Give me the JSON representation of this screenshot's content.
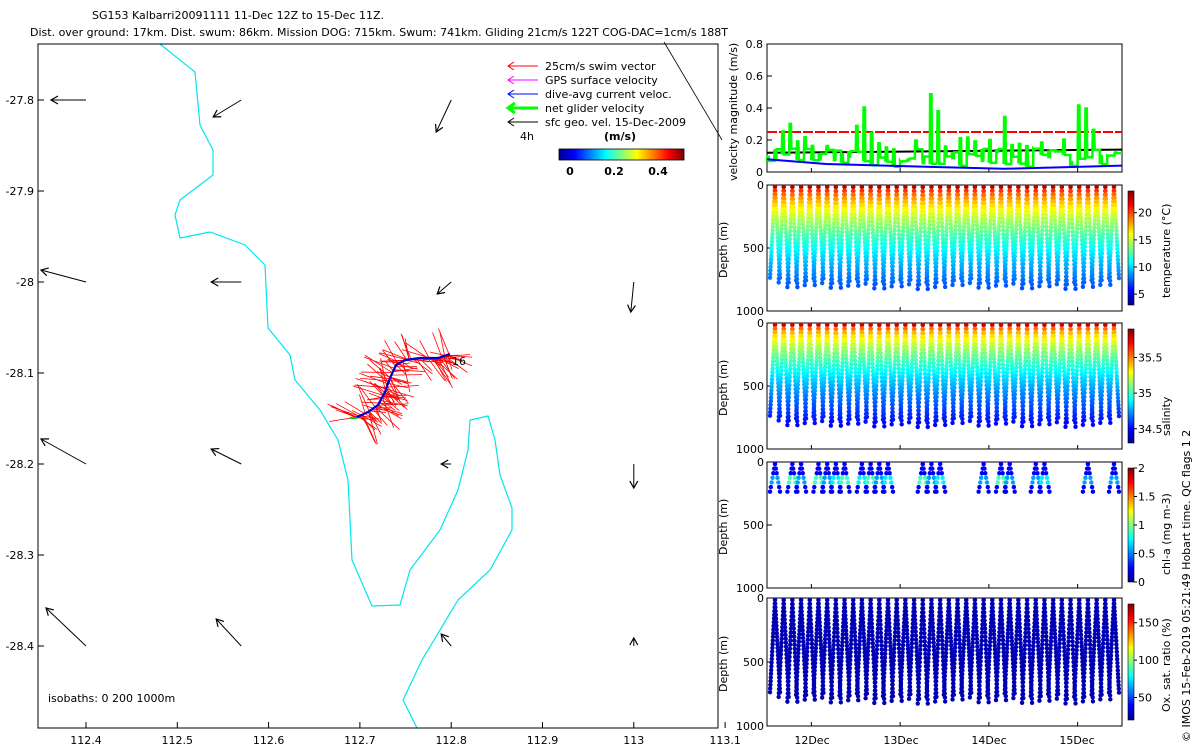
{
  "title_line1": "SG153 Kalbarri20091111 11-Dec 12Z to 15-Dec 11Z.",
  "title_line2": "Dist. over ground: 17km. Dist. swum: 86km. Mission DOG: 715km. Swum: 741km. Gliding 21cm/s 122T COG-DAC=1cm/s 188T",
  "copyright": "© IMOS 15-Feb-2019 05:21:49 Hobart time. QC flags 1  2",
  "legend": {
    "items": [
      {
        "label": "25cm/s swim vector",
        "color": "#ff0000"
      },
      {
        "label": "GPS surface velocity",
        "color": "#ff00ff"
      },
      {
        "label": "dive-avg current veloc.",
        "color": "#0000ff"
      },
      {
        "label": "net glider velocity",
        "color": "#00ff00"
      },
      {
        "label": "sfc geo. vel. 15-Dec-2009",
        "color": "#000000"
      }
    ],
    "time_label": "4h",
    "colorbar_title": "(m/s)",
    "colorbar_ticks": [
      "0",
      "0.2",
      "0.4"
    ]
  },
  "map": {
    "isobaths_label": "isobaths: 0   200  1000m",
    "end_label": "16",
    "x_ticks": [
      "112.4",
      "112.5",
      "112.6",
      "112.7",
      "112.8",
      "112.9",
      "113",
      "113.1"
    ],
    "y_ticks": [
      "-27.8",
      "-27.9",
      "-28",
      "-28.1",
      "-28.2",
      "-28.3",
      "-28.4"
    ],
    "coast_color": "#00e5ee",
    "current_arrows": [
      {
        "lon": 112.4,
        "lat": -27.8,
        "u": -0.35,
        "v": 0.0
      },
      {
        "lon": 112.57,
        "lat": -27.8,
        "u": -0.28,
        "v": -0.17
      },
      {
        "lon": 112.8,
        "lat": -27.8,
        "u": -0.15,
        "v": -0.32
      },
      {
        "lon": 112.4,
        "lat": -28.0,
        "u": -0.45,
        "v": 0.12
      },
      {
        "lon": 112.57,
        "lat": -28.0,
        "u": -0.3,
        "v": 0.0
      },
      {
        "lon": 112.8,
        "lat": -28.0,
        "u": -0.14,
        "v": -0.12
      },
      {
        "lon": 113.0,
        "lat": -28.0,
        "u": -0.03,
        "v": -0.3
      },
      {
        "lon": 112.4,
        "lat": -28.2,
        "u": -0.45,
        "v": 0.25
      },
      {
        "lon": 112.57,
        "lat": -28.2,
        "u": -0.3,
        "v": 0.15
      },
      {
        "lon": 112.8,
        "lat": -28.2,
        "u": -0.1,
        "v": 0.0
      },
      {
        "lon": 113.0,
        "lat": -28.2,
        "u": 0.0,
        "v": -0.24
      },
      {
        "lon": 112.4,
        "lat": -28.4,
        "u": -0.4,
        "v": 0.38
      },
      {
        "lon": 112.57,
        "lat": -28.4,
        "u": -0.25,
        "v": 0.27
      },
      {
        "lon": 112.8,
        "lat": -28.4,
        "u": -0.1,
        "v": 0.12
      },
      {
        "lon": 113.0,
        "lat": -28.4,
        "u": 0.0,
        "v": 0.08
      }
    ]
  },
  "chart_data": [
    {
      "type": "line",
      "ylabel": "velocity magnitude (m/s)",
      "ylim": [
        0,
        0.8
      ],
      "yticks": [
        "0",
        "0.2",
        "0.4",
        "0.6",
        "0.8"
      ],
      "x_range_days": [
        11.5,
        15.5
      ],
      "series": [
        {
          "name": "25cm/s swim vector",
          "color": "#ff0000",
          "values": [
            0.25,
            0.25
          ]
        },
        {
          "name": "sfc geo. vel. 15-Dec-2009",
          "color": "#000000",
          "values": [
            0.12,
            0.14
          ]
        },
        {
          "name": "dive-avg current veloc.",
          "color": "#0000ff",
          "values": [
            0.08,
            0.05,
            0.04,
            0.03,
            0.02,
            0.03,
            0.04
          ]
        },
        {
          "name": "net glider velocity",
          "color": "#00ff00",
          "values": [
            0.21,
            0.13,
            0.53,
            0.5,
            0.3,
            0.27,
            0.22,
            0.25,
            0.2,
            0.18
          ]
        }
      ]
    },
    {
      "type": "heatmap",
      "ylabel": "Depth (m)",
      "colorbar_label": "temperature (°C)",
      "ylim": [
        1000,
        0
      ],
      "yticks": [
        "0",
        "500",
        "1000"
      ],
      "colorbar_ticks": [
        "5",
        "10",
        "15",
        "20"
      ],
      "crange": [
        3,
        24
      ]
    },
    {
      "type": "heatmap",
      "ylabel": "Depth (m)",
      "colorbar_label": "salinity",
      "ylim": [
        1000,
        0
      ],
      "yticks": [
        "0",
        "500",
        "1000"
      ],
      "colorbar_ticks": [
        "34.5",
        "35",
        "35.5"
      ],
      "crange": [
        34.3,
        35.9
      ]
    },
    {
      "type": "heatmap",
      "ylabel": "Depth (m)",
      "colorbar_label": "chl-a (mg m-3)",
      "ylim": [
        1000,
        0
      ],
      "yticks": [
        "0",
        "500",
        "1000"
      ],
      "colorbar_ticks": [
        "0",
        "0.5",
        "1",
        "1.5",
        "2"
      ],
      "crange": [
        0,
        2
      ]
    },
    {
      "type": "heatmap",
      "ylabel": "Depth (m)",
      "colorbar_label": "Ox. sat. ratio (%)",
      "ylim": [
        1000,
        0
      ],
      "yticks": [
        "0",
        "500",
        "1000"
      ],
      "colorbar_ticks": [
        "50",
        "100",
        "150"
      ],
      "crange": [
        20,
        175
      ]
    }
  ],
  "time_ticks": [
    "12Dec",
    "13Dec",
    "14Dec",
    "15Dec"
  ]
}
